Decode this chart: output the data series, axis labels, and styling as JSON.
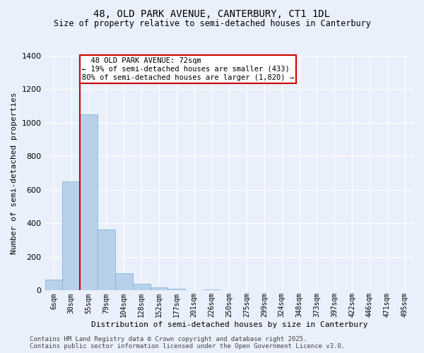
{
  "title": "48, OLD PARK AVENUE, CANTERBURY, CT1 1DL",
  "subtitle": "Size of property relative to semi-detached houses in Canterbury",
  "xlabel": "Distribution of semi-detached houses by size in Canterbury",
  "ylabel": "Number of semi-detached properties",
  "footer_line1": "Contains HM Land Registry data © Crown copyright and database right 2025.",
  "footer_line2": "Contains public sector information licensed under the Open Government Licence v3.0.",
  "categories": [
    "6sqm",
    "30sqm",
    "55sqm",
    "79sqm",
    "104sqm",
    "128sqm",
    "152sqm",
    "177sqm",
    "201sqm",
    "226sqm",
    "250sqm",
    "275sqm",
    "299sqm",
    "324sqm",
    "348sqm",
    "373sqm",
    "397sqm",
    "422sqm",
    "446sqm",
    "471sqm",
    "495sqm"
  ],
  "values": [
    65,
    650,
    1050,
    365,
    103,
    38,
    20,
    10,
    0,
    8,
    0,
    0,
    0,
    0,
    0,
    0,
    0,
    0,
    0,
    0,
    0
  ],
  "bar_color": "#b8d0ea",
  "bar_edge_color": "#7aafd4",
  "vline_x": 2.0,
  "vline_color": "#cc0000",
  "annotation_text": "  48 OLD PARK AVENUE: 72sqm\n← 19% of semi-detached houses are smaller (433)\n80% of semi-detached houses are larger (1,820) →",
  "annotation_box_color": "#cc0000",
  "annotation_bg": "white",
  "ylim": [
    0,
    1400
  ],
  "background_color": "#eaf0fb",
  "grid_color": "white",
  "title_fontsize": 10,
  "subtitle_fontsize": 8.5,
  "axis_label_fontsize": 8,
  "tick_fontsize": 7,
  "footer_fontsize": 6.5,
  "annotation_fontsize": 7.5
}
